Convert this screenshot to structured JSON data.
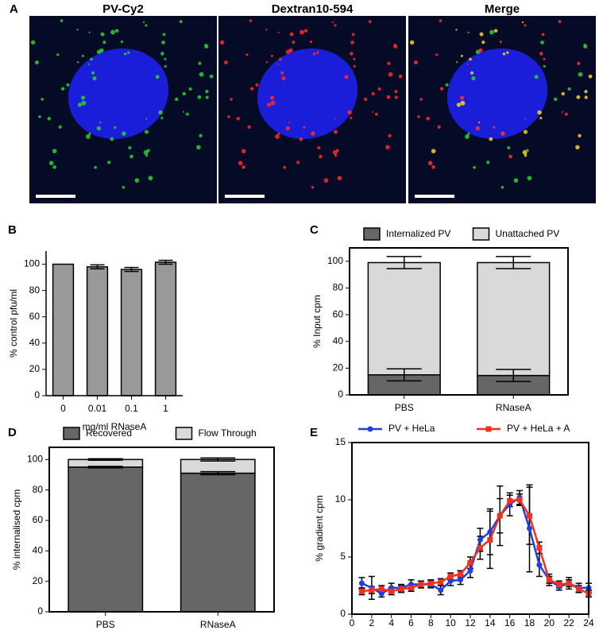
{
  "images": {
    "panel": "A",
    "titles": [
      "PV-Cy2",
      "Dextran10-594",
      "Merge"
    ]
  },
  "chart_data": [
    {
      "type": "bar",
      "panel": "B",
      "ylabel": "% control pfu/ml",
      "xlabel": "mg/ml RNaseA",
      "categories": [
        "0",
        "0.01",
        "0.1",
        "1"
      ],
      "values": [
        100,
        98,
        96,
        101.5
      ],
      "errors": [
        0,
        1.5,
        1.5,
        1.5
      ],
      "color": "#999999",
      "ylim": [
        0,
        110
      ],
      "yticks": [
        0,
        20,
        40,
        60,
        80,
        100
      ],
      "frame": false
    },
    {
      "type": "stacked-bar",
      "panel": "C",
      "ylabel": "% Input cpm",
      "categories": [
        "PBS",
        "RNaseA"
      ],
      "series": [
        {
          "name": "Internalized PV",
          "color": "#666666",
          "values": [
            15,
            14.5
          ],
          "errors": [
            4.5,
            4.5
          ]
        },
        {
          "name": "Unattached PV",
          "color": "#d9d9d9",
          "values": [
            84,
            84.5
          ],
          "errors": [
            4.5,
            4.5
          ]
        }
      ],
      "ylim": [
        0,
        110
      ],
      "yticks": [
        0,
        20,
        40,
        60,
        80,
        100
      ],
      "frame": true,
      "legend": "top"
    },
    {
      "type": "stacked-bar",
      "panel": "D",
      "ylabel": "% internalised cpm",
      "categories": [
        "PBS",
        "RNaseA"
      ],
      "series": [
        {
          "name": "Recovered",
          "color": "#666666",
          "values": [
            95,
            91
          ],
          "errors": [
            0.5,
            1
          ]
        },
        {
          "name": "Flow Through",
          "color": "#d9d9d9",
          "values": [
            5,
            9
          ],
          "errors": [
            0.5,
            1
          ]
        }
      ],
      "ylim": [
        0,
        108
      ],
      "yticks": [
        0,
        20,
        40,
        60,
        80,
        100
      ],
      "frame": true,
      "legend": "top"
    },
    {
      "type": "line",
      "panel": "E",
      "ylabel": "% gradient cpm",
      "x": [
        1,
        2,
        3,
        4,
        5,
        6,
        7,
        8,
        9,
        10,
        11,
        12,
        13,
        14,
        15,
        16,
        17,
        18,
        19,
        20,
        21,
        22,
        23,
        24
      ],
      "series": [
        {
          "name": "PV + HeLa",
          "color": "#1f3fe0",
          "values": [
            2.7,
            2.3,
            1.8,
            2.3,
            2.3,
            2.6,
            2.6,
            2.6,
            2.1,
            2.9,
            3.0,
            3.8,
            6.5,
            7.2,
            8.6,
            9.6,
            10.2,
            7.5,
            4.3,
            3.0,
            2.4,
            2.7,
            2.3,
            2.3
          ],
          "errors": [
            0.5,
            1.0,
            0.3,
            0.4,
            0.3,
            0.4,
            0.3,
            0.3,
            0.4,
            0.4,
            0.4,
            0.6,
            1.0,
            2.0,
            2.6,
            1.0,
            0.6,
            3.8,
            1.0,
            0.5,
            0.3,
            0.5,
            0.4,
            0.4
          ]
        },
        {
          "name": "PV + HeLa + A",
          "color": "#f03020",
          "values": [
            2.0,
            2.1,
            2.2,
            2.0,
            2.2,
            2.3,
            2.6,
            2.7,
            2.8,
            3.3,
            3.5,
            4.5,
            5.8,
            6.5,
            8.6,
            9.9,
            10.0,
            8.6,
            5.8,
            3.0,
            2.6,
            2.7,
            2.2,
            1.8
          ],
          "errors": [
            0.3,
            0.3,
            0.3,
            0.3,
            0.3,
            0.3,
            0.3,
            0.3,
            0.3,
            0.3,
            0.3,
            0.5,
            1.0,
            2.5,
            1.5,
            0.5,
            0.5,
            2.5,
            0.5,
            0.3,
            0.3,
            0.3,
            0.3,
            0.3
          ]
        }
      ],
      "xlim": [
        0,
        24
      ],
      "xticks": [
        0,
        2,
        4,
        6,
        8,
        10,
        12,
        14,
        16,
        18,
        20,
        22,
        24
      ],
      "ylim": [
        0,
        15
      ],
      "yticks": [
        0,
        5,
        10,
        15
      ],
      "frame": true,
      "legend": "top"
    }
  ]
}
